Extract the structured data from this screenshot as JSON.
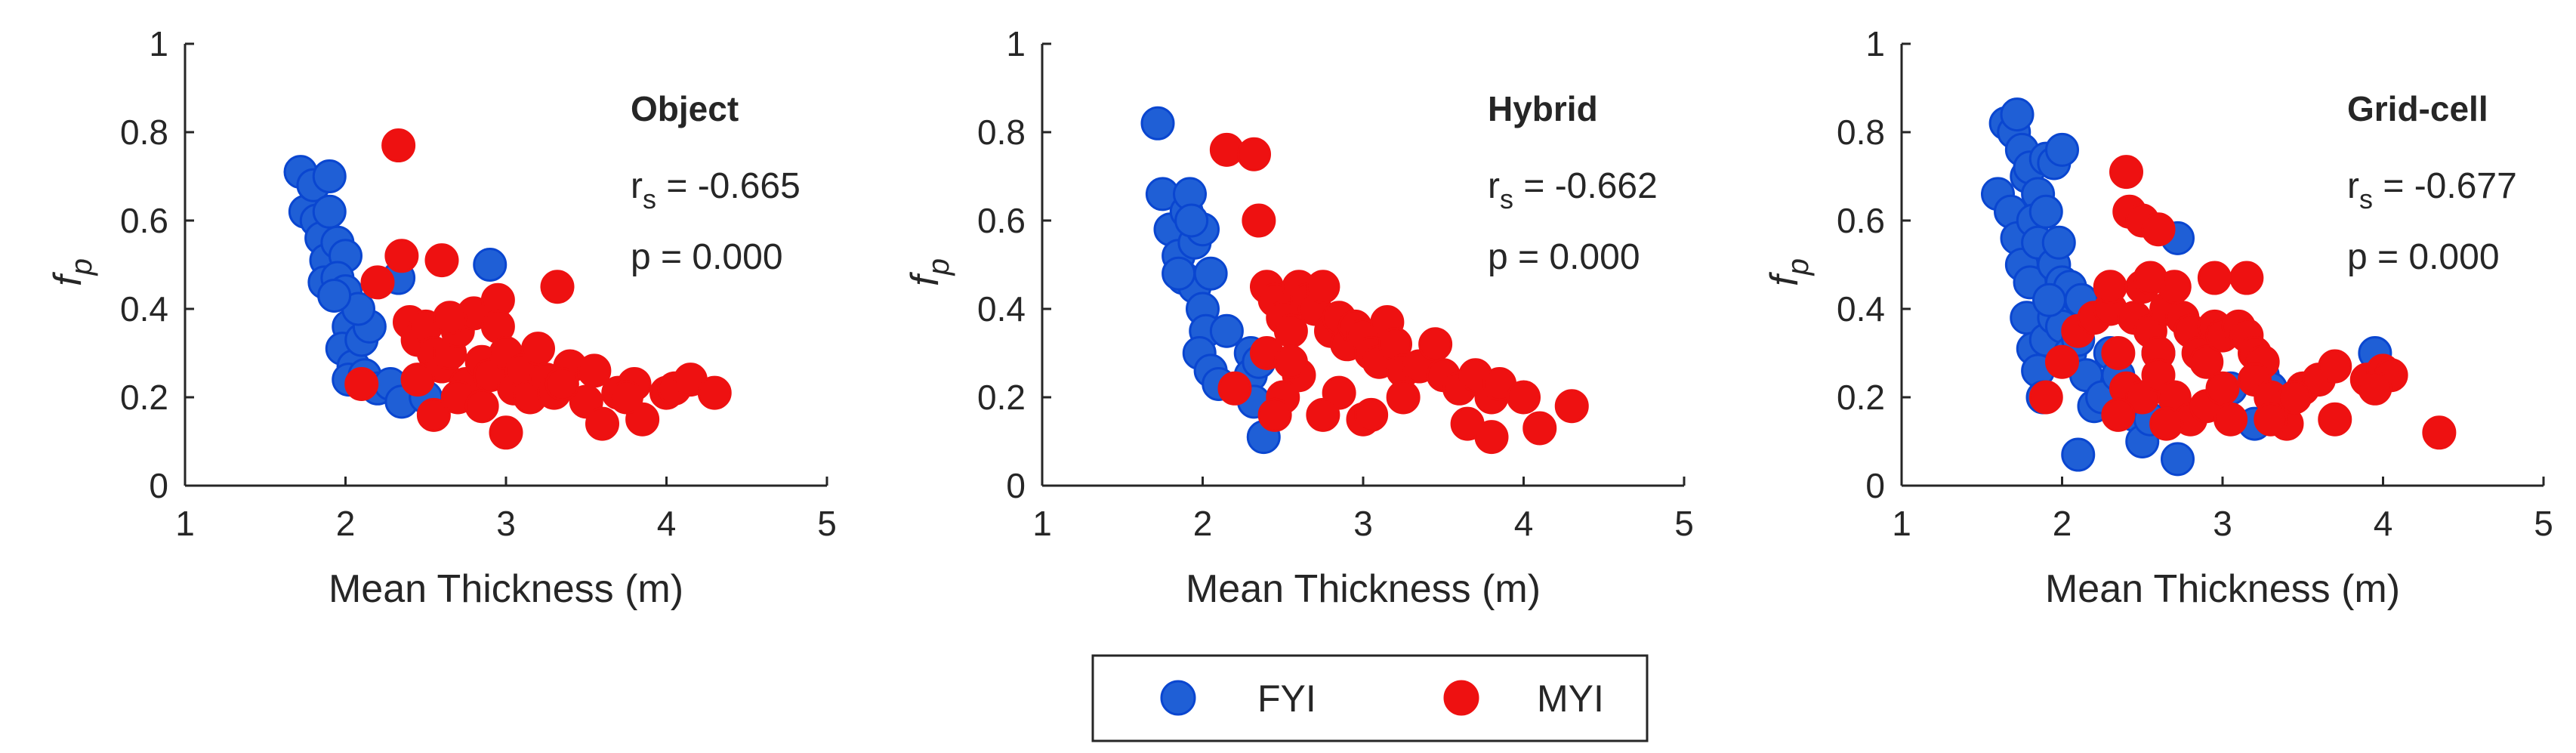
{
  "chart_data": [
    {
      "type": "scatter",
      "title": "Object",
      "xlabel": "Mean Thickness (m)",
      "ylabel": "f",
      "ylabel_sub": "p",
      "xlim": [
        1,
        5
      ],
      "ylim": [
        0,
        1
      ],
      "xticks": [
        "1",
        "2",
        "3",
        "4",
        "5"
      ],
      "yticks": [
        "0",
        "0.2",
        "0.4",
        "0.6",
        "0.8",
        "1"
      ],
      "stat_r_prefix": "r",
      "stat_r_sub": "s",
      "stat_r_value": " = -0.665",
      "stat_p": "p = 0.000",
      "series": [
        {
          "name": "FYI",
          "points": [
            [
              1.72,
              0.71
            ],
            [
              1.75,
              0.62
            ],
            [
              1.8,
              0.68
            ],
            [
              1.82,
              0.6
            ],
            [
              1.85,
              0.56
            ],
            [
              1.9,
              0.7
            ],
            [
              1.9,
              0.62
            ],
            [
              1.88,
              0.51
            ],
            [
              1.95,
              0.55
            ],
            [
              2.0,
              0.52
            ],
            [
              1.87,
              0.46
            ],
            [
              1.95,
              0.47
            ],
            [
              2.0,
              0.44
            ],
            [
              2.02,
              0.36
            ],
            [
              1.98,
              0.31
            ],
            [
              2.05,
              0.27
            ],
            [
              2.02,
              0.24
            ],
            [
              2.1,
              0.33
            ],
            [
              2.15,
              0.36
            ],
            [
              2.12,
              0.25
            ],
            [
              2.2,
              0.22
            ],
            [
              2.28,
              0.23
            ],
            [
              2.35,
              0.19
            ],
            [
              2.33,
              0.47
            ],
            [
              2.55,
              0.3
            ],
            [
              2.5,
              0.2
            ],
            [
              2.9,
              0.5
            ],
            [
              2.08,
              0.4
            ],
            [
              1.93,
              0.43
            ]
          ]
        },
        {
          "name": "MYI",
          "points": [
            [
              2.33,
              0.77
            ],
            [
              2.35,
              0.52
            ],
            [
              2.6,
              0.51
            ],
            [
              3.32,
              0.45
            ],
            [
              2.2,
              0.46
            ],
            [
              2.1,
              0.23
            ],
            [
              2.4,
              0.37
            ],
            [
              2.45,
              0.33
            ],
            [
              2.5,
              0.36
            ],
            [
              2.55,
              0.3
            ],
            [
              2.6,
              0.27
            ],
            [
              2.65,
              0.3
            ],
            [
              2.7,
              0.35
            ],
            [
              2.75,
              0.23
            ],
            [
              2.8,
              0.39
            ],
            [
              2.85,
              0.28
            ],
            [
              2.9,
              0.25
            ],
            [
              2.95,
              0.42
            ],
            [
              2.95,
              0.36
            ],
            [
              3.0,
              0.3
            ],
            [
              3.05,
              0.22
            ],
            [
              3.1,
              0.26
            ],
            [
              3.15,
              0.2
            ],
            [
              3.2,
              0.31
            ],
            [
              3.25,
              0.24
            ],
            [
              3.3,
              0.21
            ],
            [
              3.4,
              0.27
            ],
            [
              3.5,
              0.19
            ],
            [
              3.6,
              0.14
            ],
            [
              3.7,
              0.21
            ],
            [
              3.8,
              0.23
            ],
            [
              3.85,
              0.15
            ],
            [
              4.0,
              0.21
            ],
            [
              4.05,
              0.22
            ],
            [
              4.15,
              0.24
            ],
            [
              4.3,
              0.21
            ],
            [
              3.0,
              0.12
            ],
            [
              2.55,
              0.16
            ],
            [
              2.7,
              0.2
            ],
            [
              2.85,
              0.18
            ],
            [
              3.35,
              0.23
            ],
            [
              3.55,
              0.26
            ],
            [
              2.45,
              0.24
            ],
            [
              2.65,
              0.38
            ],
            [
              3.75,
              0.2
            ]
          ]
        }
      ]
    },
    {
      "type": "scatter",
      "title": "Hybrid",
      "xlabel": "Mean Thickness (m)",
      "ylabel": "f",
      "ylabel_sub": "p",
      "xlim": [
        1,
        5
      ],
      "ylim": [
        0,
        1
      ],
      "xticks": [
        "1",
        "2",
        "3",
        "4",
        "5"
      ],
      "yticks": [
        "0",
        "0.2",
        "0.4",
        "0.6",
        "0.8",
        "1"
      ],
      "stat_r_prefix": "r",
      "stat_r_sub": "s",
      "stat_r_value": " = -0.662",
      "stat_p": "p = 0.000",
      "series": [
        {
          "name": "FYI",
          "points": [
            [
              1.72,
              0.82
            ],
            [
              1.75,
              0.66
            ],
            [
              1.8,
              0.58
            ],
            [
              1.85,
              0.52
            ],
            [
              1.9,
              0.62
            ],
            [
              1.92,
              0.66
            ],
            [
              1.95,
              0.55
            ],
            [
              1.88,
              0.47
            ],
            [
              1.95,
              0.45
            ],
            [
              2.0,
              0.4
            ],
            [
              2.02,
              0.35
            ],
            [
              1.98,
              0.3
            ],
            [
              2.05,
              0.26
            ],
            [
              2.1,
              0.23
            ],
            [
              2.15,
              0.35
            ],
            [
              2.0,
              0.58
            ],
            [
              2.3,
              0.3
            ],
            [
              2.3,
              0.25
            ],
            [
              2.32,
              0.19
            ],
            [
              2.38,
              0.11
            ],
            [
              2.35,
              0.28
            ],
            [
              1.85,
              0.48
            ],
            [
              2.05,
              0.48
            ],
            [
              1.93,
              0.6
            ]
          ]
        },
        {
          "name": "MYI",
          "points": [
            [
              2.15,
              0.76
            ],
            [
              2.32,
              0.75
            ],
            [
              2.35,
              0.6
            ],
            [
              2.4,
              0.45
            ],
            [
              2.45,
              0.42
            ],
            [
              2.5,
              0.38
            ],
            [
              2.55,
              0.35
            ],
            [
              2.6,
              0.45
            ],
            [
              2.65,
              0.42
            ],
            [
              2.7,
              0.4
            ],
            [
              2.75,
              0.45
            ],
            [
              2.8,
              0.35
            ],
            [
              2.85,
              0.38
            ],
            [
              2.9,
              0.32
            ],
            [
              2.95,
              0.36
            ],
            [
              3.0,
              0.34
            ],
            [
              3.05,
              0.3
            ],
            [
              3.1,
              0.28
            ],
            [
              3.15,
              0.37
            ],
            [
              3.2,
              0.32
            ],
            [
              3.25,
              0.26
            ],
            [
              3.35,
              0.27
            ],
            [
              3.45,
              0.32
            ],
            [
              3.5,
              0.25
            ],
            [
              3.6,
              0.22
            ],
            [
              3.7,
              0.25
            ],
            [
              3.8,
              0.2
            ],
            [
              3.85,
              0.23
            ],
            [
              4.0,
              0.2
            ],
            [
              4.1,
              0.13
            ],
            [
              4.3,
              0.18
            ],
            [
              3.65,
              0.14
            ],
            [
              3.8,
              0.11
            ],
            [
              3.0,
              0.15
            ],
            [
              3.05,
              0.16
            ],
            [
              2.85,
              0.21
            ],
            [
              2.6,
              0.25
            ],
            [
              2.5,
              0.2
            ],
            [
              2.45,
              0.16
            ],
            [
              2.2,
              0.22
            ],
            [
              2.75,
              0.16
            ],
            [
              2.4,
              0.3
            ],
            [
              2.55,
              0.28
            ],
            [
              3.25,
              0.2
            ]
          ]
        }
      ]
    },
    {
      "type": "scatter",
      "title": "Grid-cell",
      "xlabel": "Mean Thickness (m)",
      "ylabel": "f",
      "ylabel_sub": "p",
      "xlim": [
        1,
        5
      ],
      "ylim": [
        0,
        1
      ],
      "xticks": [
        "1",
        "2",
        "3",
        "4",
        "5"
      ],
      "yticks": [
        "0",
        "0.2",
        "0.4",
        "0.6",
        "0.8",
        "1"
      ],
      "stat_r_prefix": "r",
      "stat_r_sub": "s",
      "stat_r_value": " = -0.677",
      "stat_p": "p = 0.000",
      "series": [
        {
          "name": "FYI",
          "points": [
            [
              1.65,
              0.82
            ],
            [
              1.7,
              0.8
            ],
            [
              1.72,
              0.84
            ],
            [
              1.75,
              0.76
            ],
            [
              1.78,
              0.7
            ],
            [
              1.8,
              0.72
            ],
            [
              1.85,
              0.66
            ],
            [
              1.9,
              0.74
            ],
            [
              1.95,
              0.73
            ],
            [
              2.0,
              0.76
            ],
            [
              1.6,
              0.66
            ],
            [
              1.68,
              0.62
            ],
            [
              1.72,
              0.56
            ],
            [
              1.75,
              0.5
            ],
            [
              1.8,
              0.46
            ],
            [
              1.82,
              0.6
            ],
            [
              1.85,
              0.55
            ],
            [
              1.9,
              0.62
            ],
            [
              1.95,
              0.5
            ],
            [
              2.0,
              0.46
            ],
            [
              2.05,
              0.45
            ],
            [
              1.78,
              0.38
            ],
            [
              1.82,
              0.31
            ],
            [
              1.85,
              0.26
            ],
            [
              1.88,
              0.2
            ],
            [
              1.9,
              0.33
            ],
            [
              1.95,
              0.38
            ],
            [
              2.0,
              0.36
            ],
            [
              2.05,
              0.3
            ],
            [
              2.1,
              0.33
            ],
            [
              2.15,
              0.25
            ],
            [
              2.2,
              0.18
            ],
            [
              2.25,
              0.2
            ],
            [
              2.3,
              0.3
            ],
            [
              2.35,
              0.25
            ],
            [
              2.4,
              0.22
            ],
            [
              2.45,
              0.16
            ],
            [
              2.5,
              0.1
            ],
            [
              2.55,
              0.15
            ],
            [
              2.1,
              0.07
            ],
            [
              2.72,
              0.06
            ],
            [
              2.72,
              0.56
            ],
            [
              2.6,
              0.3
            ],
            [
              3.05,
              0.22
            ],
            [
              3.2,
              0.14
            ],
            [
              3.25,
              0.25
            ],
            [
              3.3,
              0.22
            ],
            [
              3.95,
              0.3
            ],
            [
              1.98,
              0.55
            ],
            [
              2.12,
              0.42
            ],
            [
              1.92,
              0.42
            ]
          ]
        },
        {
          "name": "MYI",
          "points": [
            [
              2.4,
              0.71
            ],
            [
              2.42,
              0.62
            ],
            [
              2.5,
              0.6
            ],
            [
              2.6,
              0.58
            ],
            [
              1.9,
              0.2
            ],
            [
              2.0,
              0.28
            ],
            [
              2.1,
              0.35
            ],
            [
              2.2,
              0.38
            ],
            [
              2.3,
              0.4
            ],
            [
              2.35,
              0.3
            ],
            [
              2.45,
              0.38
            ],
            [
              2.5,
              0.45
            ],
            [
              2.55,
              0.35
            ],
            [
              2.6,
              0.3
            ],
            [
              2.65,
              0.4
            ],
            [
              2.7,
              0.45
            ],
            [
              2.75,
              0.38
            ],
            [
              2.8,
              0.35
            ],
            [
              2.85,
              0.3
            ],
            [
              2.9,
              0.28
            ],
            [
              2.95,
              0.36
            ],
            [
              3.0,
              0.34
            ],
            [
              3.1,
              0.36
            ],
            [
              3.15,
              0.34
            ],
            [
              3.2,
              0.3
            ],
            [
              3.25,
              0.28
            ],
            [
              2.4,
              0.22
            ],
            [
              2.5,
              0.2
            ],
            [
              2.6,
              0.25
            ],
            [
              2.7,
              0.2
            ],
            [
              2.8,
              0.15
            ],
            [
              2.9,
              0.18
            ],
            [
              3.0,
              0.22
            ],
            [
              3.05,
              0.15
            ],
            [
              3.2,
              0.24
            ],
            [
              3.3,
              0.2
            ],
            [
              3.4,
              0.14
            ],
            [
              3.5,
              0.22
            ],
            [
              3.6,
              0.24
            ],
            [
              3.7,
              0.15
            ],
            [
              3.7,
              0.27
            ],
            [
              3.9,
              0.24
            ],
            [
              4.0,
              0.26
            ],
            [
              4.05,
              0.25
            ],
            [
              4.35,
              0.12
            ],
            [
              3.15,
              0.47
            ],
            [
              2.3,
              0.45
            ],
            [
              2.35,
              0.16
            ],
            [
              2.55,
              0.47
            ],
            [
              2.65,
              0.14
            ],
            [
              2.95,
              0.47
            ],
            [
              3.3,
              0.15
            ],
            [
              3.45,
              0.2
            ],
            [
              3.95,
              0.22
            ]
          ]
        }
      ]
    }
  ],
  "legend": {
    "items": [
      {
        "label": "FYI",
        "color": "#ee0000"
      },
      {
        "label": "MYI",
        "color": "#ee0000"
      }
    ],
    "fyi_fill": "#1f5fd6",
    "fyi_edge": "#0a46d0",
    "myi_fill": "#ee1111",
    "myi_edge": "#ee1111"
  }
}
